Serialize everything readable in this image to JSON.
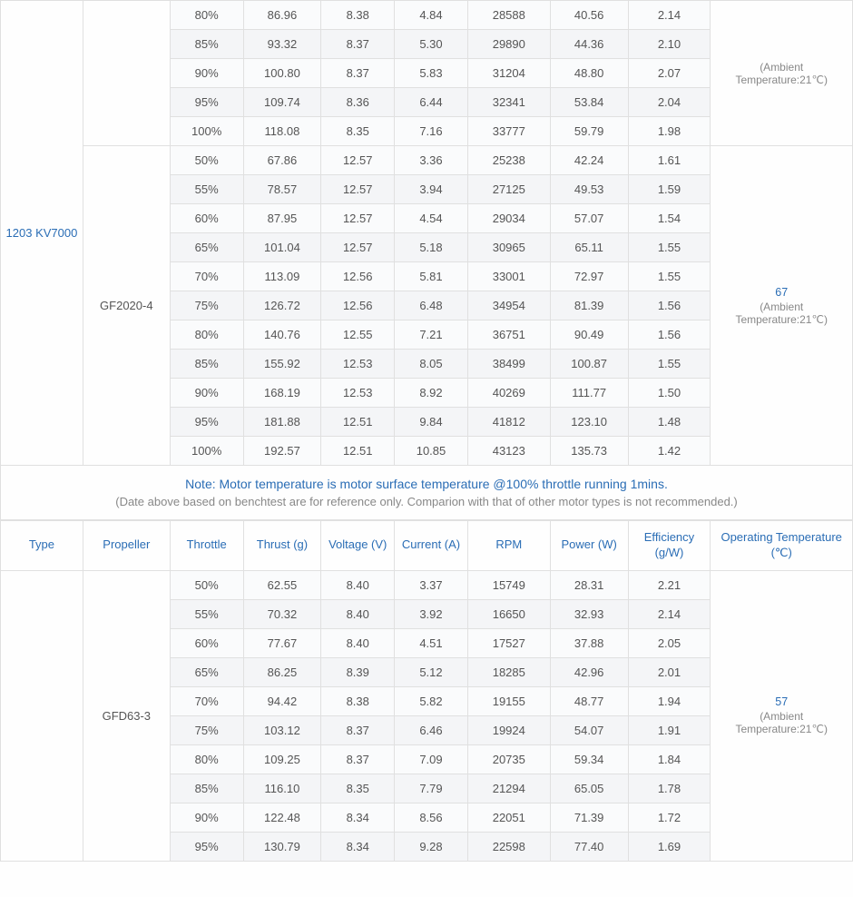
{
  "table1": {
    "type_label": "1203 KV7000",
    "groups": [
      {
        "propeller": "",
        "temp_main": "",
        "temp_sub": "(Ambient Temperature:21℃)",
        "rows": [
          [
            "80%",
            "86.96",
            "8.38",
            "4.84",
            "28588",
            "40.56",
            "2.14"
          ],
          [
            "85%",
            "93.32",
            "8.37",
            "5.30",
            "29890",
            "44.36",
            "2.10"
          ],
          [
            "90%",
            "100.80",
            "8.37",
            "5.83",
            "31204",
            "48.80",
            "2.07"
          ],
          [
            "95%",
            "109.74",
            "8.36",
            "6.44",
            "32341",
            "53.84",
            "2.04"
          ],
          [
            "100%",
            "118.08",
            "8.35",
            "7.16",
            "33777",
            "59.79",
            "1.98"
          ]
        ]
      },
      {
        "propeller": "GF2020-4",
        "temp_main": "67",
        "temp_sub": "(Ambient Temperature:21℃)",
        "rows": [
          [
            "50%",
            "67.86",
            "12.57",
            "3.36",
            "25238",
            "42.24",
            "1.61"
          ],
          [
            "55%",
            "78.57",
            "12.57",
            "3.94",
            "27125",
            "49.53",
            "1.59"
          ],
          [
            "60%",
            "87.95",
            "12.57",
            "4.54",
            "29034",
            "57.07",
            "1.54"
          ],
          [
            "65%",
            "101.04",
            "12.57",
            "5.18",
            "30965",
            "65.11",
            "1.55"
          ],
          [
            "70%",
            "113.09",
            "12.56",
            "5.81",
            "33001",
            "72.97",
            "1.55"
          ],
          [
            "75%",
            "126.72",
            "12.56",
            "6.48",
            "34954",
            "81.39",
            "1.56"
          ],
          [
            "80%",
            "140.76",
            "12.55",
            "7.21",
            "36751",
            "90.49",
            "1.56"
          ],
          [
            "85%",
            "155.92",
            "12.53",
            "8.05",
            "38499",
            "100.87",
            "1.55"
          ],
          [
            "90%",
            "168.19",
            "12.53",
            "8.92",
            "40269",
            "111.77",
            "1.50"
          ],
          [
            "95%",
            "181.88",
            "12.51",
            "9.84",
            "41812",
            "123.10",
            "1.48"
          ],
          [
            "100%",
            "192.57",
            "12.51",
            "10.85",
            "43123",
            "135.73",
            "1.42"
          ]
        ]
      }
    ]
  },
  "note": {
    "line1": "Note: Motor temperature is motor surface temperature @100% throttle running 1mins.",
    "line2": "(Date above based on benchtest are for reference only. Comparion with that of other motor types is not recommended.)"
  },
  "headers": {
    "type": "Type",
    "propeller": "Propeller",
    "throttle": "Throttle",
    "thrust": "Thrust (g)",
    "voltage": "Voltage (V)",
    "current": "Current (A)",
    "rpm": "RPM",
    "power": "Power (W)",
    "efficiency": "Efficiency (g/W)",
    "temp": "Operating Temperature (℃)"
  },
  "table2": {
    "type_label": "",
    "groups": [
      {
        "propeller": "GFD63-3",
        "temp_main": "57",
        "temp_sub": "(Ambient Temperature:21℃)",
        "rows": [
          [
            "50%",
            "62.55",
            "8.40",
            "3.37",
            "15749",
            "28.31",
            "2.21"
          ],
          [
            "55%",
            "70.32",
            "8.40",
            "3.92",
            "16650",
            "32.93",
            "2.14"
          ],
          [
            "60%",
            "77.67",
            "8.40",
            "4.51",
            "17527",
            "37.88",
            "2.05"
          ],
          [
            "65%",
            "86.25",
            "8.39",
            "5.12",
            "18285",
            "42.96",
            "2.01"
          ],
          [
            "70%",
            "94.42",
            "8.38",
            "5.82",
            "19155",
            "48.77",
            "1.94"
          ],
          [
            "75%",
            "103.12",
            "8.37",
            "6.46",
            "19924",
            "54.07",
            "1.91"
          ],
          [
            "80%",
            "109.25",
            "8.37",
            "7.09",
            "20735",
            "59.34",
            "1.84"
          ],
          [
            "85%",
            "116.10",
            "8.35",
            "7.79",
            "21294",
            "65.05",
            "1.78"
          ],
          [
            "90%",
            "122.48",
            "8.34",
            "8.56",
            "22051",
            "71.39",
            "1.72"
          ],
          [
            "95%",
            "130.79",
            "8.34",
            "9.28",
            "22598",
            "77.40",
            "1.69"
          ]
        ]
      }
    ]
  },
  "style": {
    "border_color": "#e0e0e0",
    "header_color": "#2a6db5",
    "text_color": "#666",
    "stripe_even": "#fafbfc",
    "stripe_odd": "#f4f5f7",
    "font_size": 13
  }
}
